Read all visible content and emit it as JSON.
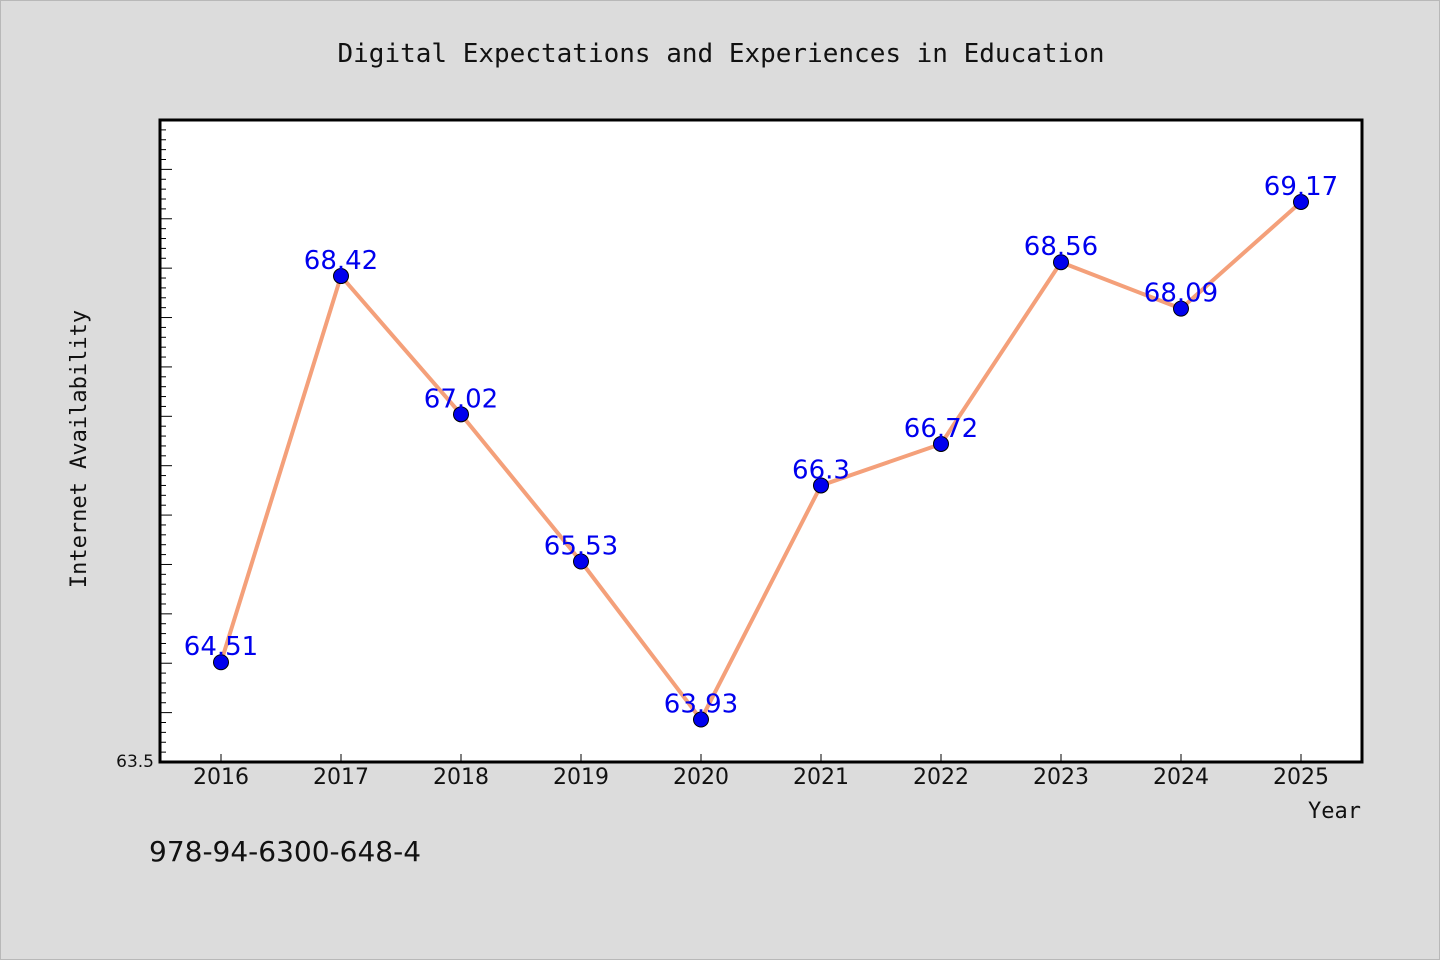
{
  "chart_data": {
    "type": "line",
    "title": "Digital Expectations and Experiences in Education",
    "xlabel": "Year",
    "ylabel": "Internet Availability",
    "categories": [
      "2016",
      "2017",
      "2018",
      "2019",
      "2020",
      "2021",
      "2022",
      "2023",
      "2024",
      "2025"
    ],
    "series": [
      {
        "values": [
          64.51,
          68.42,
          67.02,
          65.53,
          63.93,
          66.3,
          66.72,
          68.56,
          68.09,
          69.17
        ],
        "data_labels": [
          "64.51",
          "68.42",
          "67.02",
          "65.53",
          "63.93",
          "66.3",
          "66.72",
          "68.56",
          "68.09",
          "69.17"
        ],
        "line_color": "#f4a07a",
        "marker_color": "#0000ee"
      }
    ],
    "ylim": [
      63.5,
      70.0
    ],
    "yticks_labeled": [
      "63.5"
    ],
    "grid": false,
    "legend": "none"
  },
  "footer": {
    "isbn": "978-94-6300-648-4"
  },
  "colors": {
    "background": "#dcdcdc",
    "plot_background": "#ffffff",
    "label_text": "#0000ee"
  }
}
